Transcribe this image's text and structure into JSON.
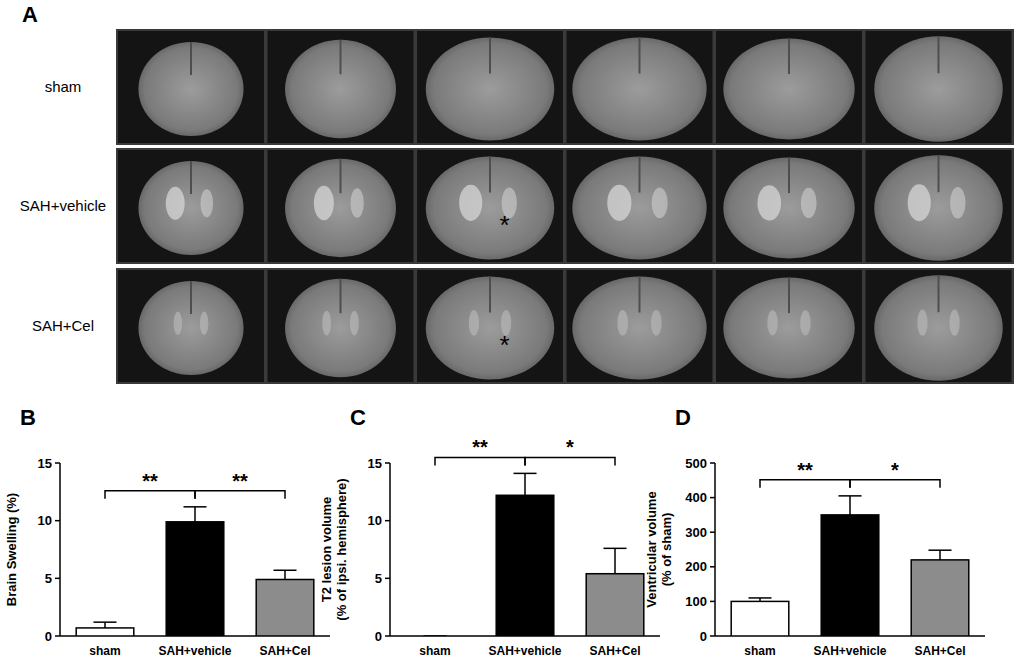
{
  "image_panel": {
    "panel": "A",
    "rows": [
      {
        "label": "sham",
        "markers": []
      },
      {
        "label": "SAH+vehicle",
        "markers": [
          {
            "image": 3,
            "text": "*"
          }
        ]
      },
      {
        "label": "SAH+Cel",
        "markers": [
          {
            "image": 3,
            "text": "*"
          }
        ]
      }
    ]
  },
  "chart_data": [
    {
      "panel": "B",
      "type": "bar",
      "ylabel": [
        "Brain Swelling (%)"
      ],
      "categories": [
        "sham",
        "SAH+vehicle",
        "SAH+Cel"
      ],
      "values": [
        0.7,
        9.9,
        4.9
      ],
      "errors": [
        0.5,
        1.3,
        0.8
      ],
      "colors": [
        "#ffffff",
        "#000000",
        "#8c8c8c"
      ],
      "ylim": [
        0,
        15
      ],
      "yticks": [
        0,
        5,
        10,
        15
      ],
      "annotations": [
        {
          "from": "sham",
          "to": "SAH+vehicle",
          "text": "**"
        },
        {
          "from": "SAH+vehicle",
          "to": "SAH+Cel",
          "text": "**"
        }
      ]
    },
    {
      "panel": "C",
      "type": "bar",
      "ylabel": [
        "T2 lesion volume",
        "(% of ipsi. hemisphere)"
      ],
      "categories": [
        "sham",
        "SAH+vehicle",
        "SAH+Cel"
      ],
      "values": [
        0,
        12.2,
        5.4
      ],
      "errors": [
        0,
        1.9,
        2.2
      ],
      "colors": [
        "#ffffff",
        "#000000",
        "#8c8c8c"
      ],
      "ylim": [
        0,
        15
      ],
      "yticks": [
        0,
        5,
        10,
        15
      ],
      "annotations": [
        {
          "from": "sham",
          "to": "SAH+vehicle",
          "text": "**"
        },
        {
          "from": "SAH+vehicle",
          "to": "SAH+Cel",
          "text": "*"
        }
      ]
    },
    {
      "panel": "D",
      "type": "bar",
      "ylabel": [
        "Ventricular volume",
        "(% of sham)"
      ],
      "categories": [
        "sham",
        "SAH+vehicle",
        "SAH+Cel"
      ],
      "values": [
        100,
        350,
        220
      ],
      "errors": [
        10,
        55,
        28
      ],
      "colors": [
        "#ffffff",
        "#000000",
        "#8c8c8c"
      ],
      "ylim": [
        0,
        500
      ],
      "yticks": [
        0,
        100,
        200,
        300,
        400,
        500
      ],
      "annotations": [
        {
          "from": "sham",
          "to": "SAH+vehicle",
          "text": "**"
        },
        {
          "from": "SAH+vehicle",
          "to": "SAH+Cel",
          "text": "*"
        }
      ]
    }
  ]
}
